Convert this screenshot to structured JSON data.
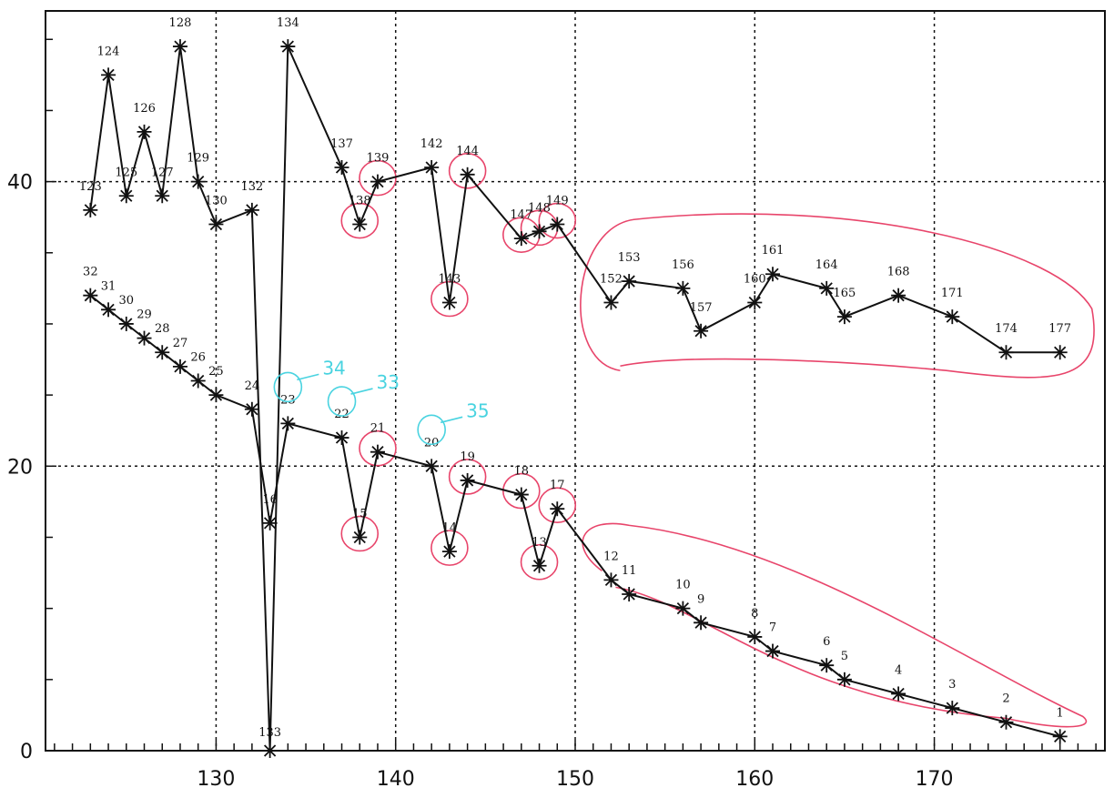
{
  "chart_data": {
    "type": "line",
    "title": "",
    "xlabel": "",
    "ylabel": "",
    "xlim": [
      120.5,
      179.5
    ],
    "ylim": [
      0,
      52
    ],
    "x_ticks": [
      130,
      140,
      150,
      160,
      170
    ],
    "y_ticks": [
      0,
      20,
      40
    ],
    "grid": true,
    "colors": {
      "line": "#111111",
      "grid": "#111111",
      "annot_pink": "#e8456b",
      "annot_cyan": "#49d3e0"
    },
    "series": [
      {
        "points": [
          {
            "x": 123,
            "y": 38,
            "label": "123"
          },
          {
            "x": 124,
            "y": 47.5,
            "label": "124"
          },
          {
            "x": 125,
            "y": 39,
            "label": "125"
          },
          {
            "x": 126,
            "y": 43.5,
            "label": "126"
          },
          {
            "x": 127,
            "y": 39,
            "label": "127"
          },
          {
            "x": 128,
            "y": 49.5,
            "label": "128"
          },
          {
            "x": 129,
            "y": 40,
            "label": "129"
          },
          {
            "x": 130,
            "y": 37,
            "label": "130"
          },
          {
            "x": 132,
            "y": 38,
            "label": "132"
          },
          {
            "x": 133,
            "y": 0,
            "label": "133"
          },
          {
            "x": 134,
            "y": 49.5,
            "label": "134"
          },
          {
            "x": 137,
            "y": 41,
            "label": "137"
          },
          {
            "x": 138,
            "y": 37,
            "label": "138"
          },
          {
            "x": 139,
            "y": 40,
            "label": "139"
          },
          {
            "x": 142,
            "y": 41,
            "label": "142"
          },
          {
            "x": 143,
            "y": 31.5,
            "label": "143"
          },
          {
            "x": 144,
            "y": 40.5,
            "label": "144"
          },
          {
            "x": 147,
            "y": 36,
            "label": "147"
          },
          {
            "x": 148,
            "y": 36.5,
            "label": "148"
          },
          {
            "x": 149,
            "y": 37,
            "label": "149"
          },
          {
            "x": 152,
            "y": 31.5,
            "label": "152"
          },
          {
            "x": 153,
            "y": 33,
            "label": "153"
          },
          {
            "x": 156,
            "y": 32.5,
            "label": "156"
          },
          {
            "x": 157,
            "y": 29.5,
            "label": "157"
          },
          {
            "x": 160,
            "y": 31.5,
            "label": "160"
          },
          {
            "x": 161,
            "y": 33.5,
            "label": "161"
          },
          {
            "x": 164,
            "y": 32.5,
            "label": "164"
          },
          {
            "x": 165,
            "y": 30.5,
            "label": "165"
          },
          {
            "x": 168,
            "y": 32,
            "label": "168"
          },
          {
            "x": 171,
            "y": 30.5,
            "label": "171"
          },
          {
            "x": 174,
            "y": 28,
            "label": "174"
          },
          {
            "x": 177,
            "y": 28,
            "label": "177"
          }
        ]
      },
      {
        "points": [
          {
            "x": 123,
            "y": 32,
            "label": "32"
          },
          {
            "x": 124,
            "y": 31,
            "label": "31"
          },
          {
            "x": 125,
            "y": 30,
            "label": "30"
          },
          {
            "x": 126,
            "y": 29,
            "label": "29"
          },
          {
            "x": 127,
            "y": 28,
            "label": "28"
          },
          {
            "x": 128,
            "y": 27,
            "label": "27"
          },
          {
            "x": 129,
            "y": 26,
            "label": "26"
          },
          {
            "x": 130,
            "y": 25,
            "label": "25"
          },
          {
            "x": 132,
            "y": 24,
            "label": "24"
          },
          {
            "x": 133,
            "y": 16,
            "label": "16"
          },
          {
            "x": 134,
            "y": 23,
            "label": "23"
          },
          {
            "x": 137,
            "y": 22,
            "label": "22"
          },
          {
            "x": 138,
            "y": 15,
            "label": "15"
          },
          {
            "x": 139,
            "y": 21,
            "label": "21"
          },
          {
            "x": 142,
            "y": 20,
            "label": "20"
          },
          {
            "x": 143,
            "y": 14,
            "label": "14"
          },
          {
            "x": 144,
            "y": 19,
            "label": "19"
          },
          {
            "x": 147,
            "y": 18,
            "label": "18"
          },
          {
            "x": 148,
            "y": 13,
            "label": "13"
          },
          {
            "x": 149,
            "y": 17,
            "label": "17"
          },
          {
            "x": 152,
            "y": 12,
            "label": "12"
          },
          {
            "x": 153,
            "y": 11,
            "label": "11"
          },
          {
            "x": 156,
            "y": 10,
            "label": "10"
          },
          {
            "x": 157,
            "y": 9,
            "label": "9"
          },
          {
            "x": 160,
            "y": 8,
            "label": "8"
          },
          {
            "x": 161,
            "y": 7,
            "label": "7"
          },
          {
            "x": 164,
            "y": 6,
            "label": "6"
          },
          {
            "x": 165,
            "y": 5,
            "label": "5"
          },
          {
            "x": 168,
            "y": 4,
            "label": "4"
          },
          {
            "x": 171,
            "y": 3,
            "label": "3"
          },
          {
            "x": 174,
            "y": 2,
            "label": "2"
          },
          {
            "x": 177,
            "y": 1,
            "label": "1"
          }
        ]
      }
    ],
    "handwritten_annotations": {
      "pink_circled_labels": [
        "139",
        "138",
        "144",
        "143",
        "147",
        "148",
        "149",
        "21",
        "15",
        "19",
        "14",
        "18",
        "17",
        "13"
      ],
      "pink_enclosed_groups": [
        [
          "152",
          "153",
          "156",
          "157",
          "160",
          "161",
          "164",
          "165",
          "168",
          "171",
          "174",
          "177"
        ],
        [
          "12",
          "11",
          "10",
          "9",
          "8",
          "7",
          "6",
          "5",
          "4",
          "3",
          "2",
          "1"
        ]
      ],
      "cyan_notes": [
        {
          "text": "34",
          "near": "23"
        },
        {
          "text": "33",
          "near": "22"
        },
        {
          "text": "35",
          "near": "20"
        }
      ]
    }
  }
}
